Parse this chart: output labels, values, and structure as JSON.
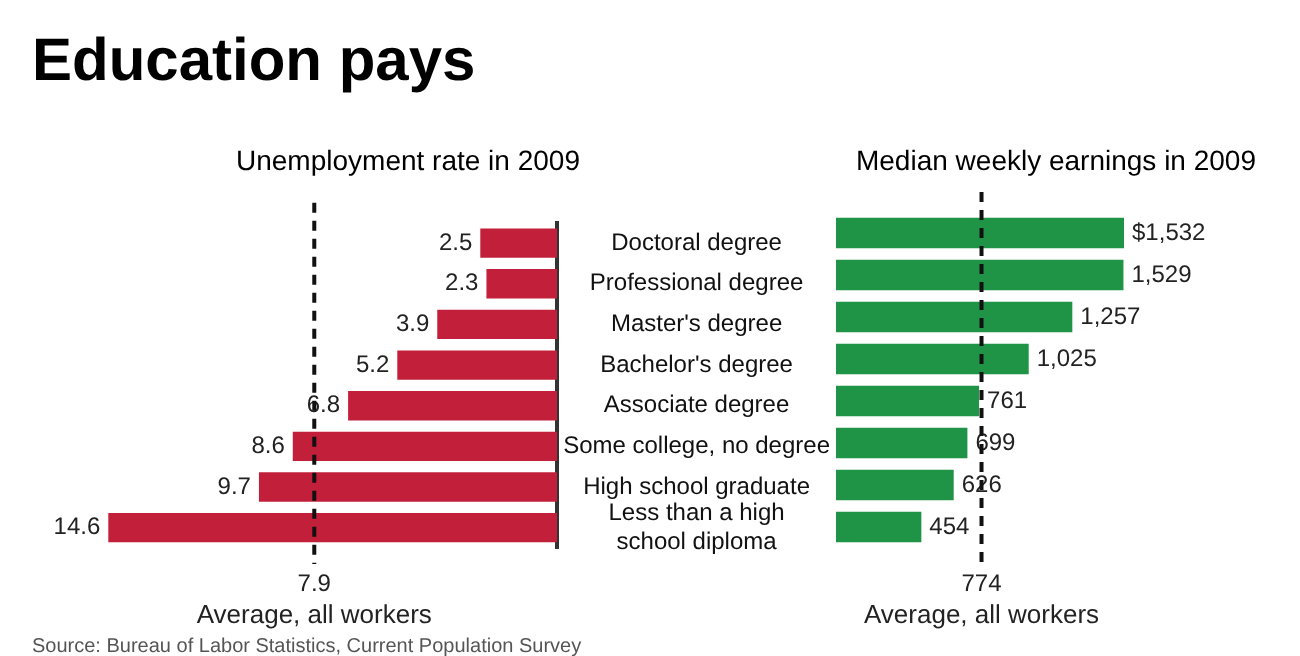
{
  "chart_data": [
    {
      "type": "bar",
      "title": "Education pays",
      "subtitle": "Unemployment rate in 2009",
      "orientation": "horizontal",
      "tick_labels": "y",
      "categories": [
        "Doctoral degree",
        "Professional degree",
        "Master's degree",
        "Bachelor's degree",
        "Associate degree",
        "Some college, no degree",
        "High school graduate",
        "Less than a high school diploma"
      ],
      "values": [
        2.5,
        2.3,
        3.9,
        5.2,
        6.8,
        8.6,
        9.7,
        14.6
      ],
      "color": "#c21f3a",
      "data_labels": true,
      "ref_lines": [
        {
          "axis": "x",
          "value": 7.9,
          "label": "7.9",
          "line_style": "dashed"
        }
      ],
      "annotations": [
        "Average, all workers",
        "Source: Bureau of Labor Statistics, Current Population Survey"
      ]
    },
    {
      "type": "bar",
      "title": "Median weekly earnings in 2009",
      "orientation": "horizontal",
      "tick_labels": false,
      "categories": [
        null,
        null,
        null,
        null,
        null,
        null,
        null,
        null
      ],
      "values": [
        1532,
        1529,
        1257,
        1025,
        761,
        699,
        626,
        454
      ],
      "color": "#1f9446",
      "value_labels": [
        "$1,532",
        "1,529",
        "1,257",
        "1,025",
        "761",
        "699",
        "626",
        "454"
      ],
      "ref_lines": [
        {
          "axis": "x",
          "value": 774,
          "label": "774",
          "line_style": "dashed"
        }
      ],
      "annotations": [
        "Average, all workers"
      ]
    }
  ]
}
